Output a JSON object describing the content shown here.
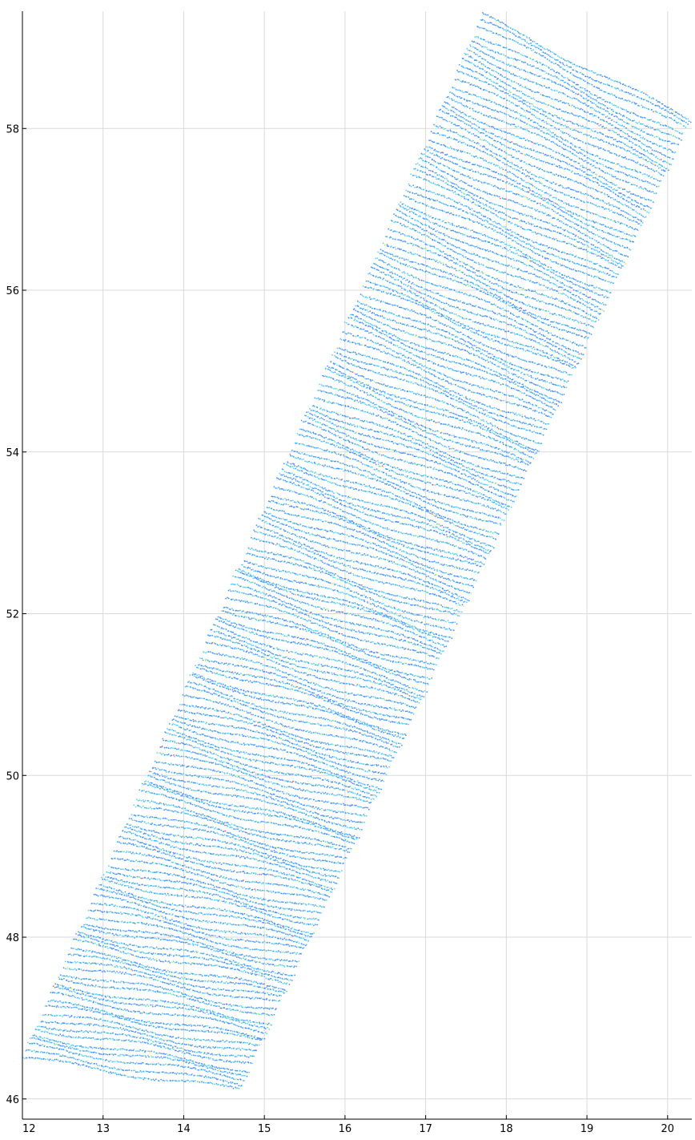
{
  "chart_data": {
    "type": "scatter",
    "title": "",
    "xlabel": "",
    "ylabel": "",
    "xlim": [
      12,
      20.3
    ],
    "ylim": [
      45.75,
      59.45
    ],
    "x_ticks": [
      12,
      13,
      14,
      15,
      16,
      17,
      18,
      19,
      20
    ],
    "y_ticks": [
      46,
      48,
      50,
      52,
      54,
      56,
      58
    ],
    "x_tick_labels": [
      "12",
      "13",
      "14",
      "15",
      "16",
      "17",
      "18",
      "19",
      "20"
    ],
    "y_tick_labels": [
      "46",
      "48",
      "50",
      "52",
      "54",
      "56",
      "58"
    ],
    "grid": true,
    "legend": "none",
    "colormap": "jet",
    "colors": {
      "dominant": "#2a7fff",
      "secondary": "#3ec8f5",
      "rare_highlights": [
        "#9ef05a",
        "#ffd23f",
        "#e8404a"
      ]
    },
    "series": [
      {
        "description_of_footprint": "swath-points",
        "corners": {
          "bottom_left": [
            12.0,
            46.5
          ],
          "bottom_right": [
            14.7,
            46.1
          ],
          "top_right": [
            20.3,
            58.1
          ],
          "top_left": [
            17.7,
            59.4
          ]
        },
        "track_rows_per_degree_lat": 14
      }
    ]
  }
}
